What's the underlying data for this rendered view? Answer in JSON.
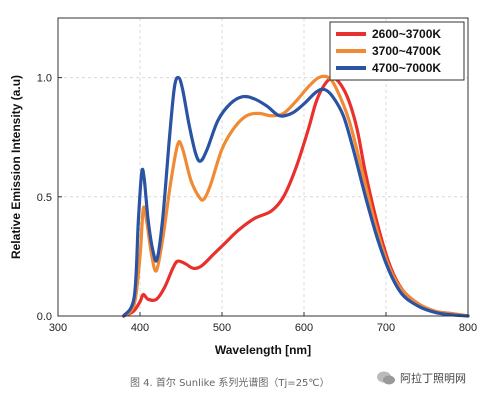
{
  "caption": "图 4. 首尔 Sunlike 系列光谱图（Tj=25℃）",
  "watermark": "阿拉丁照明网",
  "chart_data": {
    "type": "line",
    "title": "",
    "xlabel": "Wavelength [nm]",
    "ylabel": "Relative Emission Intensity (a.u)",
    "xlim": [
      300,
      800
    ],
    "ylim": [
      0,
      1.25
    ],
    "x_ticks": [
      "300",
      "400",
      "500",
      "600",
      "700",
      "800"
    ],
    "y_ticks": [
      "0.0",
      "0.5",
      "1.0"
    ],
    "grid": true,
    "legend_position": "top-right",
    "series": [
      {
        "name": "2600~3700K",
        "color": "#e8302c",
        "points": [
          [
            380,
            0.0
          ],
          [
            392,
            0.02
          ],
          [
            400,
            0.06
          ],
          [
            404,
            0.09
          ],
          [
            410,
            0.07
          ],
          [
            420,
            0.07
          ],
          [
            430,
            0.12
          ],
          [
            440,
            0.2
          ],
          [
            446,
            0.23
          ],
          [
            455,
            0.22
          ],
          [
            465,
            0.2
          ],
          [
            475,
            0.21
          ],
          [
            490,
            0.26
          ],
          [
            505,
            0.31
          ],
          [
            520,
            0.36
          ],
          [
            540,
            0.41
          ],
          [
            560,
            0.44
          ],
          [
            575,
            0.5
          ],
          [
            590,
            0.62
          ],
          [
            605,
            0.78
          ],
          [
            615,
            0.9
          ],
          [
            625,
            0.97
          ],
          [
            635,
            1.0
          ],
          [
            645,
            0.97
          ],
          [
            655,
            0.9
          ],
          [
            665,
            0.78
          ],
          [
            675,
            0.6
          ],
          [
            690,
            0.38
          ],
          [
            705,
            0.21
          ],
          [
            720,
            0.11
          ],
          [
            740,
            0.05
          ],
          [
            760,
            0.02
          ],
          [
            780,
            0.01
          ],
          [
            800,
            0.0
          ]
        ]
      },
      {
        "name": "3700~4700K",
        "color": "#f08a34",
        "points": [
          [
            380,
            0.0
          ],
          [
            393,
            0.05
          ],
          [
            400,
            0.25
          ],
          [
            404,
            0.45
          ],
          [
            408,
            0.4
          ],
          [
            414,
            0.26
          ],
          [
            420,
            0.19
          ],
          [
            428,
            0.33
          ],
          [
            437,
            0.55
          ],
          [
            446,
            0.72
          ],
          [
            452,
            0.7
          ],
          [
            462,
            0.57
          ],
          [
            472,
            0.5
          ],
          [
            478,
            0.49
          ],
          [
            486,
            0.55
          ],
          [
            500,
            0.7
          ],
          [
            515,
            0.79
          ],
          [
            530,
            0.84
          ],
          [
            545,
            0.85
          ],
          [
            560,
            0.84
          ],
          [
            575,
            0.85
          ],
          [
            590,
            0.9
          ],
          [
            605,
            0.96
          ],
          [
            618,
            1.0
          ],
          [
            630,
            1.0
          ],
          [
            640,
            0.95
          ],
          [
            655,
            0.82
          ],
          [
            670,
            0.62
          ],
          [
            685,
            0.41
          ],
          [
            700,
            0.24
          ],
          [
            715,
            0.13
          ],
          [
            735,
            0.06
          ],
          [
            760,
            0.02
          ],
          [
            780,
            0.01
          ],
          [
            800,
            0.0
          ]
        ]
      },
      {
        "name": "4700~7000K",
        "color": "#2a53a4",
        "points": [
          [
            380,
            0.0
          ],
          [
            393,
            0.08
          ],
          [
            398,
            0.4
          ],
          [
            402,
            0.6
          ],
          [
            405,
            0.58
          ],
          [
            410,
            0.4
          ],
          [
            416,
            0.27
          ],
          [
            421,
            0.24
          ],
          [
            428,
            0.42
          ],
          [
            436,
            0.75
          ],
          [
            442,
            0.96
          ],
          [
            447,
            1.0
          ],
          [
            452,
            0.95
          ],
          [
            460,
            0.8
          ],
          [
            468,
            0.68
          ],
          [
            474,
            0.65
          ],
          [
            482,
            0.7
          ],
          [
            495,
            0.82
          ],
          [
            510,
            0.89
          ],
          [
            525,
            0.92
          ],
          [
            540,
            0.91
          ],
          [
            555,
            0.88
          ],
          [
            570,
            0.84
          ],
          [
            585,
            0.85
          ],
          [
            600,
            0.89
          ],
          [
            615,
            0.94
          ],
          [
            625,
            0.95
          ],
          [
            635,
            0.92
          ],
          [
            648,
            0.84
          ],
          [
            660,
            0.7
          ],
          [
            675,
            0.5
          ],
          [
            690,
            0.32
          ],
          [
            705,
            0.18
          ],
          [
            720,
            0.09
          ],
          [
            740,
            0.04
          ],
          [
            760,
            0.015
          ],
          [
            780,
            0.005
          ],
          [
            800,
            0.0
          ]
        ]
      }
    ]
  }
}
